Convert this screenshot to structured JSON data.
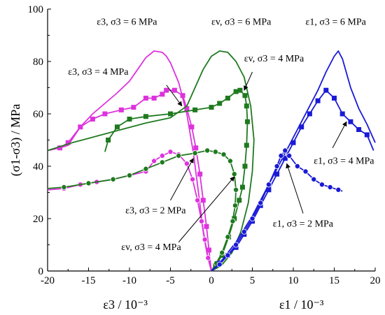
{
  "chart_data": {
    "type": "line",
    "y_axis": {
      "label": "(σ1-σ3) / MPa",
      "range": [
        0,
        100
      ],
      "ticks": [
        "0",
        "20",
        "40",
        "60",
        "80",
        "100"
      ]
    },
    "x_axis": {
      "ticks": [
        "-20",
        "-15",
        "-10",
        "-5",
        "0",
        "5",
        "10",
        "15",
        "20"
      ],
      "range": [
        -20,
        20
      ],
      "label_left": "ε3 / 10⁻³",
      "label_right": "ε1 / 10⁻³"
    },
    "colors": {
      "sigma3_2": "#dd33dd",
      "eps_v": "#1f7a1f",
      "eps_1": "#1a1ad6"
    },
    "series": [
      {
        "key": "e3_s6",
        "color": "#dd33dd",
        "marker": "none",
        "points": [
          [
            -20,
            46
          ],
          [
            -18.5,
            47
          ],
          [
            -17.5,
            48
          ],
          [
            -16,
            55
          ],
          [
            -14.5,
            60
          ],
          [
            -13,
            64
          ],
          [
            -11.5,
            68
          ],
          [
            -10,
            72.5
          ],
          [
            -9,
            77
          ],
          [
            -8,
            81.5
          ],
          [
            -7,
            84
          ],
          [
            -6,
            83.5
          ],
          [
            -5.5,
            82
          ],
          [
            -5,
            79.5
          ],
          [
            -4,
            72
          ],
          [
            -3,
            60
          ],
          [
            -2.2,
            45
          ],
          [
            -1.5,
            28
          ],
          [
            -1,
            15
          ],
          [
            -0.5,
            6
          ],
          [
            0,
            0
          ]
        ]
      },
      {
        "key": "e3_s4",
        "color": "#dd33dd",
        "marker": "square",
        "points": [
          [
            -20,
            46
          ],
          [
            -18.5,
            47
          ],
          [
            -17.5,
            49
          ],
          [
            -16,
            55
          ],
          [
            -14.5,
            58
          ],
          [
            -13,
            60
          ],
          [
            -11,
            61.5
          ],
          [
            -9.5,
            62.5
          ],
          [
            -8,
            66
          ],
          [
            -7,
            66
          ],
          [
            -6,
            67.5
          ],
          [
            -5.5,
            69
          ],
          [
            -4.5,
            69
          ],
          [
            -3.5,
            67
          ],
          [
            -3,
            62
          ],
          [
            -2.4,
            55
          ],
          [
            -1.9,
            47
          ],
          [
            -1.4,
            37
          ],
          [
            -1,
            27
          ],
          [
            -0.6,
            17
          ],
          [
            -0.3,
            8
          ],
          [
            0,
            0
          ]
        ]
      },
      {
        "key": "e3_s2",
        "color": "#dd33dd",
        "marker": "circle",
        "points": [
          [
            -20,
            31
          ],
          [
            -18,
            31.5
          ],
          [
            -16,
            33
          ],
          [
            -14,
            34
          ],
          [
            -12,
            35
          ],
          [
            -10,
            36.5
          ],
          [
            -8,
            38
          ],
          [
            -7,
            42
          ],
          [
            -6,
            44
          ],
          [
            -5,
            45.5
          ],
          [
            -4,
            44.5
          ],
          [
            -3,
            41
          ],
          [
            -2.3,
            35
          ],
          [
            -1.7,
            27
          ],
          [
            -1.2,
            19
          ],
          [
            -0.8,
            12
          ],
          [
            -0.4,
            5
          ],
          [
            0,
            0
          ]
        ]
      },
      {
        "key": "ev_s6",
        "color": "#1f7a1f",
        "marker": "none",
        "points": [
          [
            -20,
            46
          ],
          [
            -17,
            49
          ],
          [
            -14,
            51.5
          ],
          [
            -11,
            54
          ],
          [
            -8,
            56.5
          ],
          [
            -5,
            58.5
          ],
          [
            -3,
            63
          ],
          [
            -2,
            70
          ],
          [
            -1,
            77
          ],
          [
            0,
            82
          ],
          [
            1,
            84
          ],
          [
            2,
            83.5
          ],
          [
            3,
            80
          ],
          [
            4,
            74
          ],
          [
            4.8,
            63
          ],
          [
            5.2,
            50
          ],
          [
            5,
            38
          ],
          [
            4.5,
            26
          ],
          [
            3.6,
            15
          ],
          [
            2.5,
            7
          ],
          [
            1.2,
            2
          ],
          [
            0,
            0
          ]
        ]
      },
      {
        "key": "ev_s4",
        "color": "#1f7a1f",
        "marker": "square",
        "points": [
          [
            -13,
            45.5
          ],
          [
            -12.6,
            50
          ],
          [
            -11.5,
            55
          ],
          [
            -10,
            58
          ],
          [
            -8,
            59
          ],
          [
            -5,
            60
          ],
          [
            -2,
            61.5
          ],
          [
            0,
            62.5
          ],
          [
            1,
            64
          ],
          [
            2,
            66
          ],
          [
            3,
            68.5
          ],
          [
            3.5,
            69
          ],
          [
            4.1,
            67
          ],
          [
            4.3,
            63
          ],
          [
            4.4,
            57
          ],
          [
            4.3,
            48
          ],
          [
            4.1,
            40
          ],
          [
            3.8,
            32
          ],
          [
            3.4,
            27
          ],
          [
            2.8,
            20
          ],
          [
            2.1,
            13
          ],
          [
            1.3,
            6
          ],
          [
            0.5,
            2
          ],
          [
            0,
            0
          ]
        ]
      },
      {
        "key": "ev_s2",
        "color": "#1f7a1f",
        "marker": "circle",
        "points": [
          [
            -20,
            31.5
          ],
          [
            -18,
            32
          ],
          [
            -15,
            33.5
          ],
          [
            -12,
            35
          ],
          [
            -10,
            36.5
          ],
          [
            -8,
            39
          ],
          [
            -6,
            41.5
          ],
          [
            -4,
            44
          ],
          [
            -2,
            45
          ],
          [
            -0.5,
            46
          ],
          [
            0.5,
            45.5
          ],
          [
            1.5,
            44.5
          ],
          [
            2.3,
            42
          ],
          [
            2.8,
            37
          ],
          [
            3,
            31
          ],
          [
            2.9,
            25
          ],
          [
            2.6,
            19
          ],
          [
            2,
            13
          ],
          [
            1.3,
            7
          ],
          [
            0.6,
            3
          ],
          [
            0,
            0
          ]
        ]
      },
      {
        "key": "e1_s6",
        "color": "#1a1ad6",
        "marker": "none",
        "points": [
          [
            0,
            0
          ],
          [
            1,
            3
          ],
          [
            2,
            7
          ],
          [
            3,
            11
          ],
          [
            4,
            16
          ],
          [
            5,
            21
          ],
          [
            6,
            27
          ],
          [
            7,
            33
          ],
          [
            8,
            39
          ],
          [
            9,
            45
          ],
          [
            10,
            51
          ],
          [
            11,
            57
          ],
          [
            12,
            63
          ],
          [
            13,
            69
          ],
          [
            14,
            76
          ],
          [
            15,
            82
          ],
          [
            15.5,
            84
          ],
          [
            16,
            81
          ],
          [
            17,
            70
          ],
          [
            18,
            62
          ],
          [
            19,
            56
          ],
          [
            20,
            49
          ]
        ]
      },
      {
        "key": "e1_s4",
        "color": "#1a1ad6",
        "marker": "square",
        "points": [
          [
            0,
            0
          ],
          [
            1,
            3
          ],
          [
            2,
            6
          ],
          [
            3,
            9
          ],
          [
            4,
            14
          ],
          [
            5,
            19
          ],
          [
            6,
            25
          ],
          [
            7,
            31
          ],
          [
            8,
            37
          ],
          [
            9,
            43
          ],
          [
            10,
            49
          ],
          [
            11,
            55
          ],
          [
            12,
            60
          ],
          [
            13,
            65
          ],
          [
            14,
            69
          ],
          [
            15,
            66
          ],
          [
            16,
            60
          ],
          [
            17,
            57
          ],
          [
            18,
            54
          ],
          [
            19,
            52
          ],
          [
            19.8,
            46
          ]
        ]
      },
      {
        "key": "e1_s2",
        "color": "#1a1ad6",
        "marker": "circle",
        "points": [
          [
            0,
            0
          ],
          [
            1,
            2.5
          ],
          [
            2,
            6
          ],
          [
            3,
            10
          ],
          [
            4,
            15
          ],
          [
            5,
            20
          ],
          [
            6,
            26
          ],
          [
            7,
            33
          ],
          [
            8,
            40
          ],
          [
            8.5,
            44
          ],
          [
            9,
            46
          ],
          [
            9.5,
            44
          ],
          [
            10.5,
            40
          ],
          [
            11.5,
            38
          ],
          [
            12.5,
            35
          ],
          [
            13.5,
            33
          ],
          [
            14.5,
            32
          ],
          [
            15.5,
            31
          ],
          [
            16,
            30.5
          ]
        ]
      }
    ],
    "annotations": [
      {
        "text": "ε3, σ3 = 6 MPa",
        "x": -14,
        "y": 94
      },
      {
        "text": "εv, σ3 = 6 MPa",
        "x": 0,
        "y": 94
      },
      {
        "text": "ε1, σ3 = 6 MPa",
        "x": 11.5,
        "y": 94
      },
      {
        "text": "ε3, σ3 = 4 MPa",
        "x": -17.5,
        "y": 75
      },
      {
        "text": "εv, σ3 = 4 MPa",
        "x": 4,
        "y": 80
      },
      {
        "text": "ε1, σ3 = 4 MPa",
        "x": 12.5,
        "y": 41
      },
      {
        "text": "ε3, σ3 = 2 MPa",
        "x": -10.5,
        "y": 22
      },
      {
        "text": "εv, σ3 = 4 MPa",
        "x": -11,
        "y": 8
      },
      {
        "text": "ε1, σ3 = 2 MPa",
        "x": 7.5,
        "y": 17
      }
    ]
  }
}
